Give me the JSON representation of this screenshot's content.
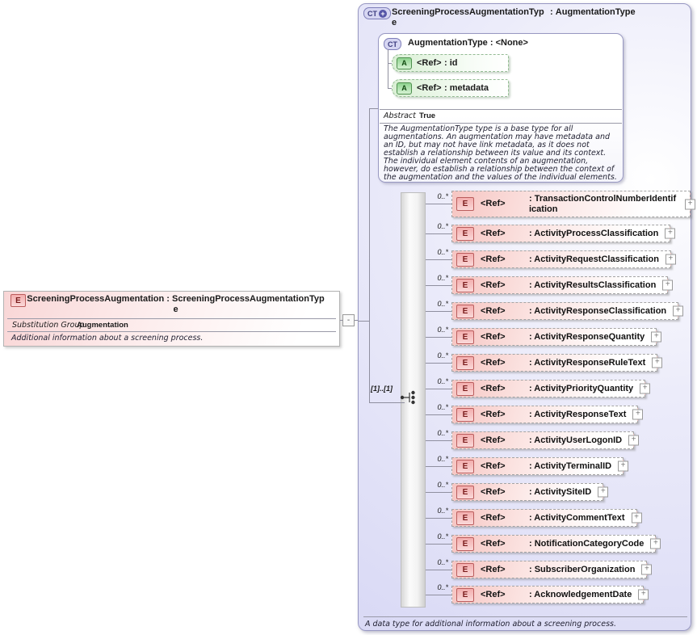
{
  "labels": {
    "ref": "<Ref>",
    "colon": ": ",
    "expand": "+",
    "collapse": "-"
  },
  "left_element": {
    "badge": "E",
    "title_name": "ScreeningProcessAugmentation",
    "title_separator": " : ",
    "title_type": "ScreeningProcessAugmentationType",
    "substitution_group_label": "Substitution Group",
    "substitution_group_value": "Augmentation",
    "description": "Additional information about a screening process."
  },
  "type_panel": {
    "badge": "CT",
    "title_name": "ScreeningProcessAugmentationType",
    "title_separator": " : ",
    "title_type": "AugmentationType",
    "base_type": {
      "badge": "CT",
      "title": "AugmentationType : <None>",
      "attributes": [
        {
          "badge": "A",
          "name": "id"
        },
        {
          "badge": "A",
          "name": "metadata"
        }
      ],
      "abstract_label": "Abstract",
      "abstract_value": "True",
      "description": "The AugmentationType type is a base type for all augmentations. An augmentation may have metadata and an ID, but may not have link metadata, as it does not establish a relationship between its value and its context. The individual element contents of an augmentation, however, do establish a relationship between the context of the augmentation and the values of the individual elements."
    },
    "group_cardinality": "[1]..[1]",
    "elements": [
      {
        "cardinality": "0..*",
        "badge": "E",
        "name": "TransactionControlNumberIdentification"
      },
      {
        "cardinality": "0..*",
        "badge": "E",
        "name": "ActivityProcessClassification"
      },
      {
        "cardinality": "0..*",
        "badge": "E",
        "name": "ActivityRequestClassification"
      },
      {
        "cardinality": "0..*",
        "badge": "E",
        "name": "ActivityResultsClassification"
      },
      {
        "cardinality": "0..*",
        "badge": "E",
        "name": "ActivityResponseClassification"
      },
      {
        "cardinality": "0..*",
        "badge": "E",
        "name": "ActivityResponseQuantity"
      },
      {
        "cardinality": "0..*",
        "badge": "E",
        "name": "ActivityResponseRuleText"
      },
      {
        "cardinality": "0..*",
        "badge": "E",
        "name": "ActivityPriorityQuantity"
      },
      {
        "cardinality": "0..*",
        "badge": "E",
        "name": "ActivityResponseText"
      },
      {
        "cardinality": "0..*",
        "badge": "E",
        "name": "ActivityUserLogonID"
      },
      {
        "cardinality": "0..*",
        "badge": "E",
        "name": "ActivityTerminalID"
      },
      {
        "cardinality": "0..*",
        "badge": "E",
        "name": "ActivitySiteID"
      },
      {
        "cardinality": "0..*",
        "badge": "E",
        "name": "ActivityCommentText"
      },
      {
        "cardinality": "0..*",
        "badge": "E",
        "name": "NotificationCategoryCode"
      },
      {
        "cardinality": "0..*",
        "badge": "E",
        "name": "SubscriberOrganization"
      },
      {
        "cardinality": "0..*",
        "badge": "E",
        "name": "AcknowledgementDate"
      }
    ],
    "footer": "A data type for additional information about a screening process."
  },
  "colors": {
    "panel_fill": "#d9d9f5",
    "panel_border": "#9898c2",
    "element_fill": "#f6c5c2",
    "element_badge_border": "#bb5d5d",
    "attribute_fill": "#d9efd4",
    "attribute_badge_border": "#4d8f4d",
    "ct_badge_fill": "#d6d6f2",
    "ct_badge_border": "#7d7db8"
  }
}
